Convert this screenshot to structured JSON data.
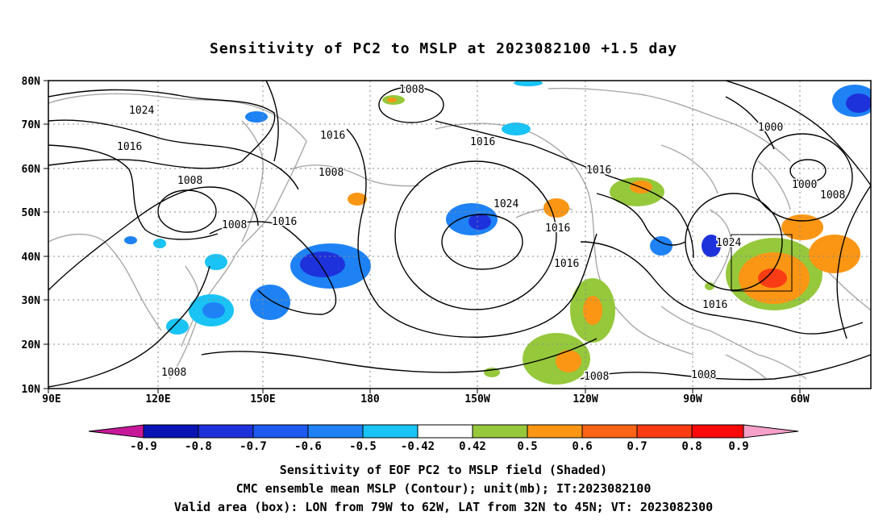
{
  "title": "Sensitivity of PC2 to MSLP at 2023082100 +1.5 day",
  "map": {
    "lon_labels": [
      "90E",
      "120E",
      "150E",
      "180",
      "150W",
      "120W",
      "90W",
      "60W"
    ],
    "lat_labels": [
      "80N",
      "70N",
      "60N",
      "50N",
      "40N",
      "30N",
      "20N",
      "10N"
    ],
    "grid": "dotted",
    "valid_box": {
      "lon_from": "79W",
      "lon_to": "62W",
      "lat_from": "32N",
      "lat_to": "45N"
    },
    "contour_labels": [
      "1008",
      "1024",
      "1016",
      "1008",
      "1016",
      "1008",
      "1016",
      "1008",
      "1016",
      "1024",
      "1016",
      "1016",
      "1016",
      "1000",
      "1000",
      "1008",
      "1024",
      "1016",
      "1008",
      "1008",
      "1008"
    ]
  },
  "colorbar": {
    "labels": [
      "-0.9",
      "-0.8",
      "-0.7",
      "-0.6",
      "-0.5",
      "-0.42",
      "0.42",
      "0.5",
      "0.6",
      "0.7",
      "0.8",
      "0.9"
    ],
    "colors": [
      "#c8189a",
      "#0a14b4",
      "#1e32dc",
      "#1e5af0",
      "#1e82f5",
      "#19c3f5",
      "#ffffff",
      "#96c83c",
      "#fa9614",
      "#fa6414",
      "#fa3c14",
      "#fa0a0a",
      "#f5a0c8"
    ]
  },
  "captions": {
    "line1": "Sensitivity of EOF PC2 to MSLP field (Shaded)",
    "line2": "CMC ensemble mean MSLP (Contour); unit(mb); IT:2023082100",
    "line3": "Valid area (box): LON from 79W to 62W, LAT from 32N to 45N; VT: 2023082300"
  }
}
